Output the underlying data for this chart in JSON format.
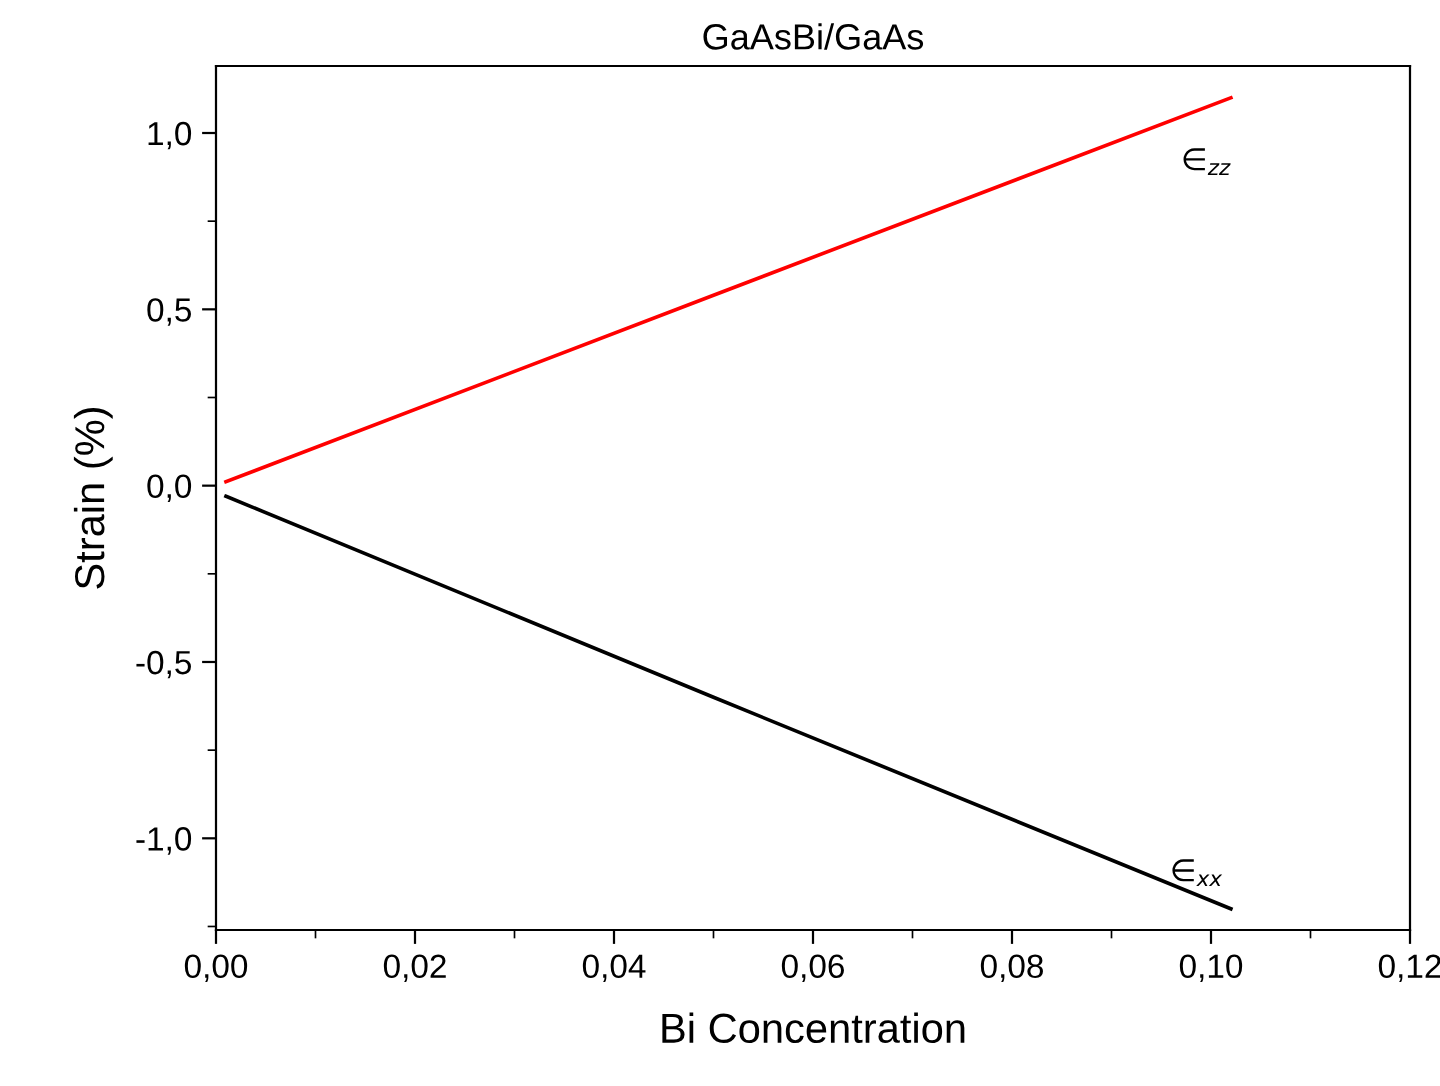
{
  "chart_data": {
    "type": "line",
    "title": "GaAsBi/GaAs",
    "xlabel": "Bi Concentration",
    "ylabel": "Strain (%)",
    "series": [
      {
        "x": [
          0.001,
          0.05,
          0.102
        ],
        "values": [
          0.011,
          0.54,
          1.1
        ],
        "color": "#ff0000"
      },
      {
        "x": [
          0.001,
          0.05,
          0.102
        ],
        "values": [
          -0.03,
          -0.6,
          -1.2
        ],
        "color": "#000000"
      }
    ],
    "xlim": [
      0,
      0.12
    ],
    "ylim": [
      -1.26,
      1.19
    ],
    "xticks": [
      {
        "value": 0,
        "label": "0,00"
      },
      {
        "value": 0.02,
        "label": "0,02"
      },
      {
        "value": 0.04,
        "label": "0,04"
      },
      {
        "value": 0.06,
        "label": "0,06"
      },
      {
        "value": 0.08,
        "label": "0,08"
      },
      {
        "value": 0.1,
        "label": "0,10"
      },
      {
        "value": 0.12,
        "label": "0,12"
      }
    ],
    "yticks": [
      {
        "value": -1,
        "label": "-1,0"
      },
      {
        "value": -0.5,
        "label": "-0,5"
      },
      {
        "value": 0,
        "label": "0,0"
      },
      {
        "value": 0.5,
        "label": "0,5"
      },
      {
        "value": 1,
        "label": "1,0"
      }
    ],
    "annotations": [
      "∈$_{zz}$",
      "∈$_{xx}$"
    ],
    "grid": false,
    "legend": false,
    "marker": "none",
    "line_style": "solid"
  }
}
